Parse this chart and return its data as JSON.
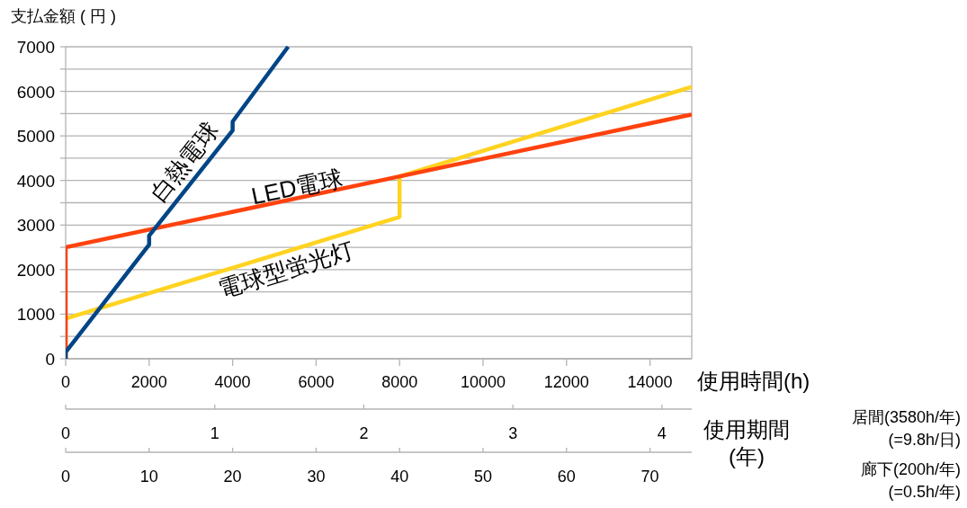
{
  "chart_data": {
    "type": "line",
    "ylabel": "支払金額 ( 円 )",
    "xlabel": "使用時間(h)",
    "x2label": "使用期間\n(年)",
    "xlim": [
      0,
      15000
    ],
    "xticks": [
      0,
      2000,
      4000,
      6000,
      8000,
      10000,
      12000,
      14000
    ],
    "x2lim": [
      0,
      4.2
    ],
    "x2ticks": [
      0,
      1,
      2,
      3,
      4
    ],
    "ylim": [
      0,
      7000
    ],
    "yticks": [
      0,
      {
        "value": 500,
        "label": null
      },
      1000,
      {
        "value": 1500,
        "label": null
      },
      2000,
      {
        "value": 2500,
        "label": null
      },
      3000,
      {
        "value": 3500,
        "label": null
      },
      4000,
      {
        "value": 4500,
        "label": null
      },
      5000,
      {
        "value": 5500,
        "label": null
      },
      6000,
      {
        "value": 6500,
        "label": null
      },
      7000
    ],
    "grid": "y",
    "series": [
      {
        "name": "電球型蛍光灯",
        "color": "#ffd320",
        "x": [
          0,
          0,
          8000,
          8000,
          15000
        ],
        "values": [
          0,
          900,
          3180,
          4090,
          6100
        ]
      },
      {
        "name": "LED電球",
        "color": "#ff420e",
        "x": [
          0,
          0,
          15000
        ],
        "values": [
          0,
          2500,
          5480
        ]
      },
      {
        "name": "白熱電球",
        "color": "#004586",
        "x": [
          0,
          0,
          2000,
          2000,
          4000,
          4000,
          5330
        ],
        "values": [
          0,
          150,
          2560,
          2760,
          5120,
          5320,
          7000
        ]
      }
    ],
    "annotations": [
      "居間(3580h/年)\n(=9.8h/日)",
      "廊下(200h/年)\n(=0.5h/年)",
      "0",
      "10",
      "20",
      "30",
      "40",
      "50",
      "60",
      "70"
    ]
  }
}
